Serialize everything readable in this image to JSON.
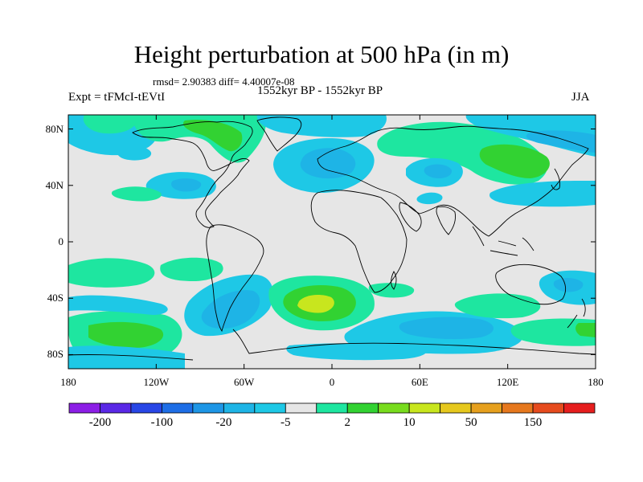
{
  "title": "Height perturbation at 500 hPa (in m)",
  "stats": "rmsd= 2.90383 diff= 4.40007e-08",
  "experiment": "Expt = tFMcI-tEVtI",
  "period": "1552kyr BP - 1552kyr BP",
  "season": "JJA",
  "lat_ticks": [
    "80N",
    "40N",
    "0",
    "40S",
    "80S"
  ],
  "lon_ticks": [
    "180",
    "120W",
    "60W",
    "0",
    "60E",
    "120E",
    "180"
  ],
  "colorbar": {
    "colors": [
      "#8c1ee6",
      "#5a28e6",
      "#2846e6",
      "#1e6ee6",
      "#1e96e6",
      "#1eb4e6",
      "#1ec8e6",
      "#e6e6e6",
      "#1ee6a0",
      "#32d232",
      "#78dc1e",
      "#c8e61e",
      "#e6c81e",
      "#e6a01e",
      "#e6781e",
      "#e64b1e",
      "#e61e1e"
    ],
    "labels": [
      "-200",
      "-100",
      "-20",
      "-5",
      "2",
      "10",
      "50",
      "150"
    ]
  },
  "palette": {
    "neutral": "#e6e6e6",
    "light_green": "#1ee6a0",
    "green": "#32d232",
    "yellow_green": "#c8e61e",
    "cyan": "#1ec8e6",
    "light_blue": "#1eb4e6",
    "blue": "#1e96e6"
  }
}
